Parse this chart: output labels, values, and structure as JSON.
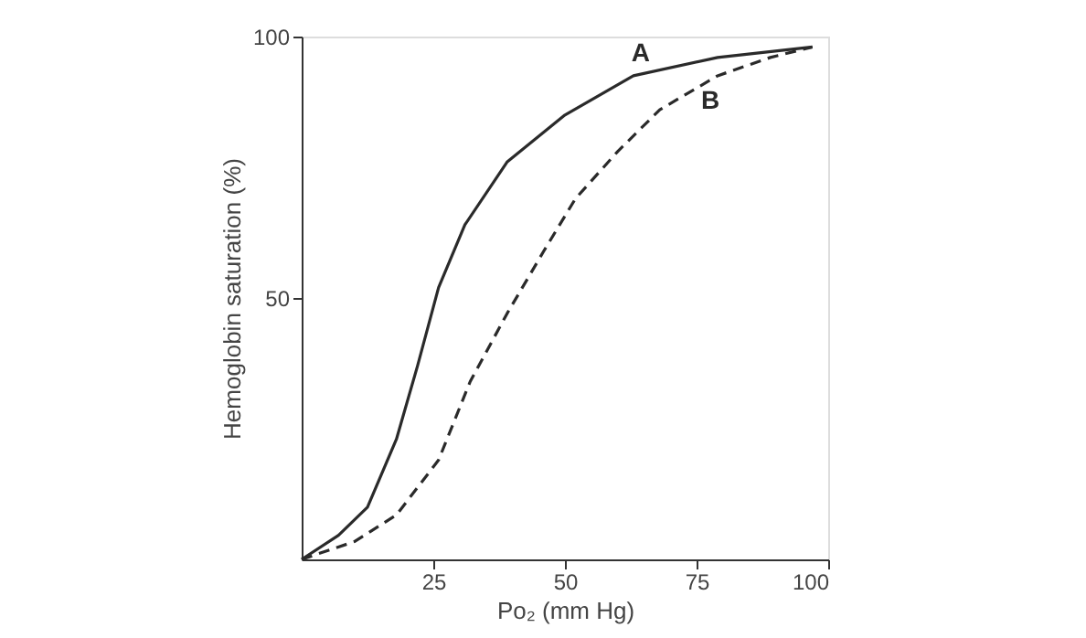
{
  "chart_data": {
    "type": "line",
    "xlabel": "Po₂ (mm Hg)",
    "ylabel": "Hemoglobin saturation (%)",
    "xlim": [
      0,
      100
    ],
    "ylim": [
      0,
      100
    ],
    "xticks": [
      25,
      50,
      75,
      100
    ],
    "yticks": [
      50,
      100
    ],
    "grid": false,
    "marker": "none",
    "series": [
      {
        "name": "A",
        "color": "#2a2a2a",
        "line_style": "solid",
        "x": [
          0,
          7,
          12.5,
          18,
          22,
          26,
          31,
          39,
          50,
          63,
          79,
          97
        ],
        "values": [
          0,
          4.6,
          10,
          23,
          37,
          52,
          64,
          76,
          85,
          92.5,
          96,
          98
        ]
      },
      {
        "name": "B",
        "color": "#2a2a2a",
        "line_style": "dashed",
        "x": [
          0,
          10,
          18,
          26,
          32,
          39,
          46,
          52,
          60,
          68,
          79,
          89,
          97
        ],
        "values": [
          0,
          3.4,
          8.5,
          19,
          34,
          47,
          59,
          69,
          78,
          86,
          92.5,
          96,
          98
        ]
      }
    ]
  }
}
